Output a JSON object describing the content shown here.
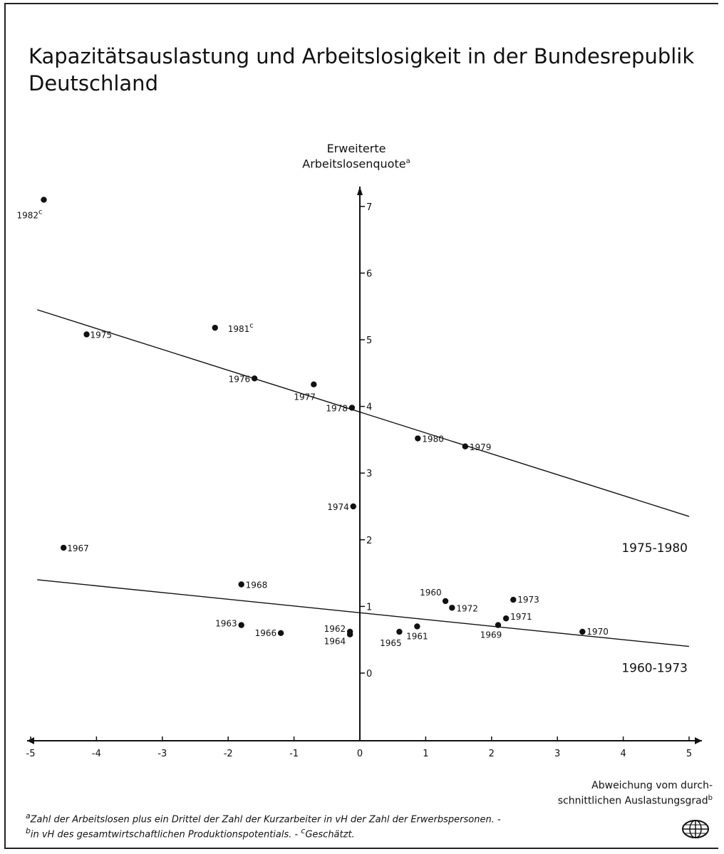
{
  "chart_data": {
    "type": "scatter",
    "title": "Kapazitätsauslastung und Arbeitslosigkeit in der Bundesrepublik Deutschland",
    "ylabel_line1": "Erweiterte",
    "ylabel_line2": "Arbeitslosenquote",
    "ylabel_mark": "a",
    "xlabel_line1": "Abweichung vom durch-",
    "xlabel_line2": "schnittlichen Auslastungsgrad",
    "xlabel_mark": "b",
    "xlim": [
      -5,
      5
    ],
    "ylim": [
      -1,
      7.5
    ],
    "x_ticks": [
      -5,
      -4,
      -3,
      -2,
      -1,
      0,
      1,
      2,
      3,
      4,
      5
    ],
    "x_tick_labels": [
      "-5",
      "-4",
      "-3",
      "-2",
      "-1",
      "0",
      "1",
      "2",
      "3",
      "4",
      "5"
    ],
    "y_ticks": [
      0,
      1,
      2,
      3,
      4,
      5,
      6,
      7
    ],
    "y_tick_labels": [
      "0",
      "1",
      "2",
      "3",
      "4",
      "5",
      "6",
      "7"
    ],
    "grid": false,
    "points": [
      {
        "label": "1960",
        "sup": "",
        "x": 1.3,
        "y": 1.08
      },
      {
        "label": "1961",
        "sup": "",
        "x": 0.87,
        "y": 0.7
      },
      {
        "label": "1962",
        "sup": "",
        "x": -0.15,
        "y": 0.62
      },
      {
        "label": "1963",
        "sup": "",
        "x": -1.8,
        "y": 0.72
      },
      {
        "label": "1964",
        "sup": "",
        "x": -0.15,
        "y": 0.58
      },
      {
        "label": "1965",
        "sup": "",
        "x": 0.6,
        "y": 0.62
      },
      {
        "label": "1966",
        "sup": "",
        "x": -1.2,
        "y": 0.6
      },
      {
        "label": "1967",
        "sup": "",
        "x": -4.5,
        "y": 1.88
      },
      {
        "label": "1968",
        "sup": "",
        "x": -1.8,
        "y": 1.33
      },
      {
        "label": "1969",
        "sup": "",
        "x": 2.1,
        "y": 0.72
      },
      {
        "label": "1970",
        "sup": "",
        "x": 3.38,
        "y": 0.62
      },
      {
        "label": "1971",
        "sup": "",
        "x": 2.22,
        "y": 0.82
      },
      {
        "label": "1972",
        "sup": "",
        "x": 1.4,
        "y": 0.98
      },
      {
        "label": "1973",
        "sup": "",
        "x": 2.33,
        "y": 1.1
      },
      {
        "label": "1974",
        "sup": "",
        "x": -0.1,
        "y": 2.5
      },
      {
        "label": "1975",
        "sup": "",
        "x": -4.15,
        "y": 5.08
      },
      {
        "label": "1976",
        "sup": "",
        "x": -1.6,
        "y": 4.42
      },
      {
        "label": "1977",
        "sup": "",
        "x": -0.7,
        "y": 4.33
      },
      {
        "label": "1978",
        "sup": "",
        "x": -0.12,
        "y": 3.98
      },
      {
        "label": "1979",
        "sup": "",
        "x": 1.6,
        "y": 3.4
      },
      {
        "label": "1980",
        "sup": "",
        "x": 0.88,
        "y": 3.52
      },
      {
        "label": "1981",
        "sup": "c",
        "x": -2.2,
        "y": 5.18
      },
      {
        "label": "1982",
        "sup": "c",
        "x": -4.8,
        "y": 7.1
      }
    ],
    "series": [
      {
        "name": "1975-1980",
        "x": [
          -4.9,
          5.0
        ],
        "y": [
          5.45,
          2.35
        ]
      },
      {
        "name": "1960-1973",
        "x": [
          -4.9,
          5.0
        ],
        "y": [
          1.4,
          0.4
        ]
      }
    ]
  },
  "footnotes": {
    "a_mark": "a",
    "a_text": "Zahl der Arbeitslosen plus ein Drittel der Zahl der Kurzarbeiter in vH der Zahl der Erwerbspersonen. -",
    "b_mark": "b",
    "b_text": "in vH des gesamtwirtschaftlichen Produktionspotentials. -",
    "c_mark": "c",
    "c_text": "Geschätzt."
  },
  "logo_icon": "institute-globe-logo-icon"
}
